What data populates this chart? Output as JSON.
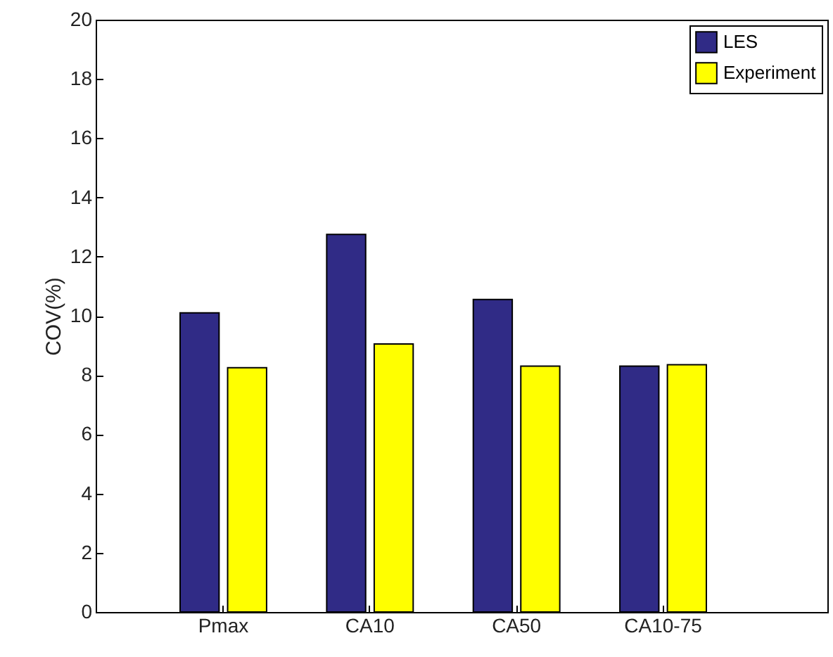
{
  "chart_data": {
    "type": "bar",
    "ylabel": "COV(%)",
    "categories": [
      "Pmax",
      "CA10",
      "CA50",
      "CA10-75"
    ],
    "series": [
      {
        "name": "LES",
        "color": "#302b86",
        "values": [
          10.1,
          12.75,
          10.55,
          8.3
        ]
      },
      {
        "name": "Experiment",
        "color": "#ffff00",
        "values": [
          8.25,
          9.05,
          8.3,
          8.35
        ]
      }
    ],
    "ylim": [
      0,
      20
    ],
    "yticks": [
      0,
      2,
      4,
      6,
      8,
      10,
      12,
      14,
      16,
      18,
      20
    ],
    "grid": false,
    "legend": "top right"
  }
}
